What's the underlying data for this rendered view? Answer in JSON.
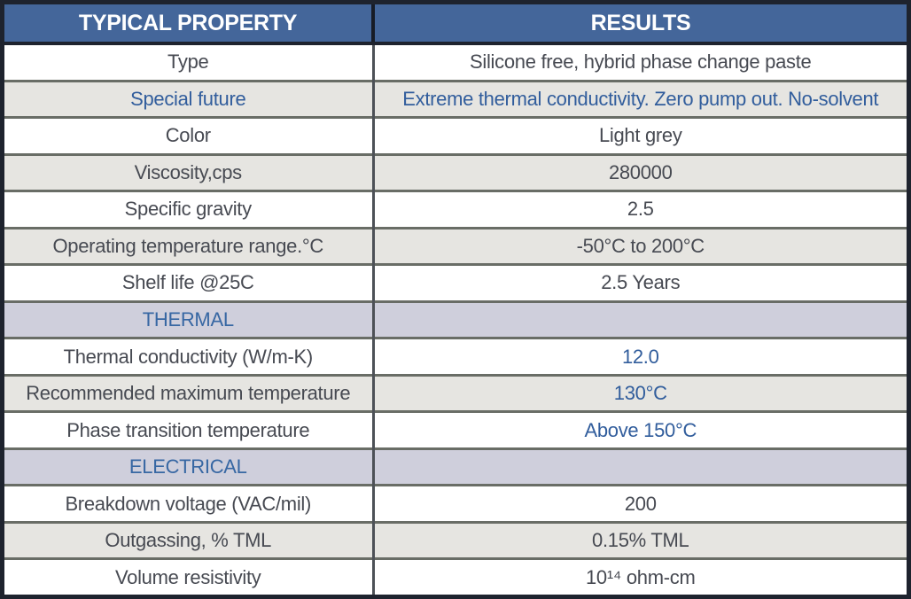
{
  "colors": {
    "header_bg": "#44669a",
    "header_text": "#ffffff",
    "accent_blue": "#315d9c",
    "row_grey_bg": "#e6e5e1",
    "section_row_bg": "#cfcfdc",
    "body_text": "#474a52",
    "outer_border": "#1e232e",
    "inner_border": "#696d66"
  },
  "table": {
    "columns": [
      {
        "label": "TYPICAL PROPERTY"
      },
      {
        "label": "RESULTS"
      }
    ],
    "rows": [
      {
        "property": "Type",
        "result": "Silicone free, hybrid phase change paste",
        "bg": "white",
        "property_blue": false,
        "result_blue": false,
        "section": false
      },
      {
        "property": "Special future",
        "result": "Extreme thermal conductivity. Zero pump out.  No-solvent",
        "bg": "grey",
        "property_blue": true,
        "result_blue": true,
        "section": false
      },
      {
        "property": "Color",
        "result": "Light grey",
        "bg": "white",
        "property_blue": false,
        "result_blue": false,
        "section": false
      },
      {
        "property": "Viscosity,cps",
        "result": "280000",
        "bg": "grey",
        "property_blue": false,
        "result_blue": false,
        "section": false
      },
      {
        "property": "Specific gravity",
        "result": "2.5",
        "bg": "white",
        "property_blue": false,
        "result_blue": false,
        "section": false
      },
      {
        "property": "Operating temperature range.°C",
        "result": "-50°C  to 200°C",
        "bg": "grey",
        "property_blue": false,
        "result_blue": false,
        "section": false
      },
      {
        "property": "Shelf life @25C",
        "result": "2.5 Years",
        "bg": "white",
        "property_blue": false,
        "result_blue": false,
        "section": false
      },
      {
        "property": "THERMAL",
        "result": "",
        "bg": "section",
        "property_blue": true,
        "result_blue": false,
        "section": true
      },
      {
        "property": "Thermal conductivity (W/m-K)",
        "result": "12.0",
        "bg": "white",
        "property_blue": false,
        "result_blue": true,
        "section": false
      },
      {
        "property": "Recommended maximum temperature",
        "result": "130°C",
        "bg": "grey",
        "property_blue": false,
        "result_blue": true,
        "section": false
      },
      {
        "property": "Phase transition temperature",
        "result": "Above 150°C",
        "bg": "white",
        "property_blue": false,
        "result_blue": true,
        "section": false
      },
      {
        "property": "ELECTRICAL",
        "result": "",
        "bg": "section",
        "property_blue": true,
        "result_blue": false,
        "section": true
      },
      {
        "property": "Breakdown voltage  (VAC/mil)",
        "result": "200",
        "bg": "white",
        "property_blue": false,
        "result_blue": false,
        "section": false
      },
      {
        "property": "Outgassing, % TML",
        "result": "0.15% TML",
        "bg": "grey",
        "property_blue": false,
        "result_blue": false,
        "section": false
      },
      {
        "property": "Volume resistivity",
        "result": "10¹⁴ ohm-cm",
        "bg": "white",
        "property_blue": false,
        "result_blue": false,
        "section": false
      }
    ]
  }
}
